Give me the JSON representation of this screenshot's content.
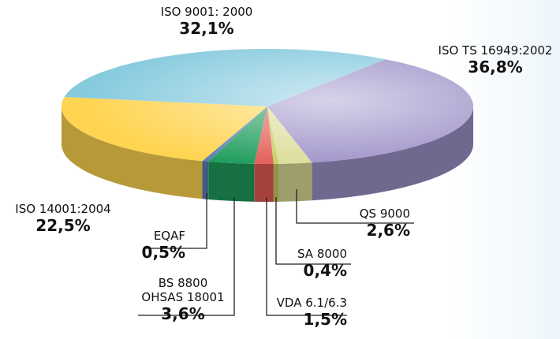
{
  "chart_data": {
    "type": "pie3d",
    "categories": [
      "ISO TS 16949:2002",
      "QS 9000",
      "SA 8000",
      "VDA 6.1/6.3",
      "BS 8800\nOHSAS 18001",
      "EQAF",
      "ISO 14001:2004",
      "ISO 9001: 2000"
    ],
    "values": [
      36.8,
      2.6,
      0.4,
      1.5,
      3.6,
      0.5,
      22.5,
      32.1
    ],
    "value_labels": [
      "36,8%",
      "2,6%",
      "0,4%",
      "1,5%",
      "3,6%",
      "0,5%",
      "22,5%",
      "32,1%"
    ],
    "colors": [
      "#9d91c8",
      "#dcdc98",
      "#c6d060",
      "#e25c55",
      "#1e9c5c",
      "#5a80b0",
      "#ffd450",
      "#86cade"
    ]
  }
}
